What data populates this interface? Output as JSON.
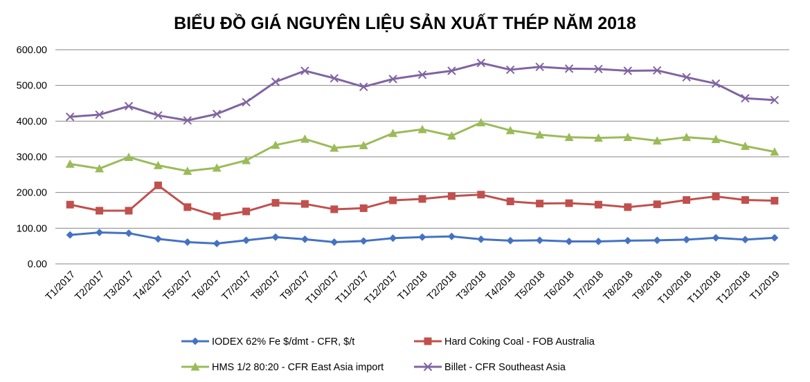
{
  "chart_data": {
    "type": "line",
    "title": "BIỂU ĐỒ GIÁ NGUYÊN LIỆU SẢN XUẤT THÉP NĂM 2018",
    "xlabel": "",
    "ylabel": "",
    "ylim": [
      0,
      600
    ],
    "yticks": [
      "0.00",
      "100.00",
      "200.00",
      "300.00",
      "400.00",
      "500.00",
      "600.00"
    ],
    "grid": true,
    "legend_position": "bottom",
    "categories": [
      "T1/2017",
      "T2/2017",
      "T3/2017",
      "T4/2017",
      "T5/2017",
      "T6/2017",
      "T7/2017",
      "T8/2017",
      "T9/2017",
      "T10/2017",
      "T11/2017",
      "T12/2017",
      "T1/2018",
      "T2/2018",
      "T3/2018",
      "T4/2018",
      "T5/2018",
      "T6/2018",
      "T7/2018",
      "T8/2018",
      "T9/2018",
      "T10/2018",
      "T11/2018",
      "T12/2018",
      "T1/2019"
    ],
    "series": [
      {
        "name": "IODEX 62% Fe $/dmt - CFR, $/t",
        "color": "#4472c4",
        "marker": "diamond",
        "values": [
          81,
          88,
          86,
          70,
          61,
          57,
          66,
          75,
          69,
          61,
          64,
          72,
          75,
          77,
          69,
          65,
          66,
          63,
          63,
          65,
          66,
          68,
          73,
          68,
          73
        ]
      },
      {
        "name": "Hard Coking Coal - FOB Australia",
        "color": "#c0504d",
        "marker": "square",
        "values": [
          166,
          149,
          149,
          220,
          159,
          134,
          147,
          171,
          168,
          153,
          156,
          178,
          182,
          190,
          194,
          175,
          169,
          170,
          166,
          159,
          167,
          179,
          189,
          179,
          177
        ]
      },
      {
        "name": "HMS 1/2 80:20 - CFR East Asia import",
        "color": "#9bbb59",
        "marker": "triangle",
        "values": [
          280,
          267,
          299,
          276,
          260,
          269,
          290,
          333,
          350,
          325,
          332,
          366,
          377,
          359,
          396,
          374,
          362,
          355,
          353,
          355,
          345,
          355,
          349,
          330,
          314
        ]
      },
      {
        "name": "Billet - CFR Southeast Asia",
        "color": "#8064a2",
        "marker": "x",
        "values": [
          412,
          418,
          442,
          416,
          402,
          420,
          453,
          510,
          541,
          520,
          496,
          518,
          530,
          541,
          563,
          544,
          552,
          547,
          546,
          541,
          542,
          523,
          505,
          464,
          459
        ]
      }
    ]
  }
}
